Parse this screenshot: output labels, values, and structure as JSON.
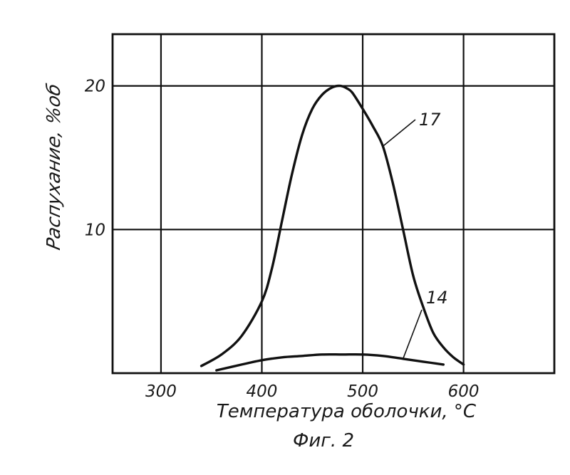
{
  "chart_data": {
    "type": "line",
    "xlabel": "Температура оболочки, °C",
    "ylabel": "Распухание, %об",
    "caption": "Фиг. 2",
    "x_ticks": [
      "300",
      "400",
      "500",
      "600"
    ],
    "y_ticks": [
      "10",
      "20"
    ],
    "xlim": [
      252,
      690
    ],
    "ylim": [
      0,
      23.6
    ],
    "grid": true,
    "series": [
      {
        "name": "17",
        "x": [
          340,
          360,
          380,
          400,
          410,
          420,
          430,
          440,
          450,
          460,
          470,
          478,
          485,
          490,
          500,
          510,
          520,
          530,
          540,
          550,
          560,
          570,
          580,
          590,
          600
        ],
        "y": [
          0.5,
          1.3,
          2.6,
          5.0,
          7.3,
          10.6,
          13.9,
          16.6,
          18.4,
          19.4,
          19.9,
          20.0,
          19.8,
          19.5,
          18.4,
          17.2,
          15.8,
          13.2,
          10.0,
          6.8,
          4.6,
          2.8,
          1.8,
          1.1,
          0.6
        ]
      },
      {
        "name": "14",
        "x": [
          355,
          380,
          400,
          420,
          440,
          460,
          480,
          500,
          520,
          540,
          560,
          580
        ],
        "y": [
          0.2,
          0.6,
          0.9,
          1.1,
          1.2,
          1.3,
          1.3,
          1.3,
          1.2,
          1.0,
          0.8,
          0.6
        ]
      }
    ]
  }
}
